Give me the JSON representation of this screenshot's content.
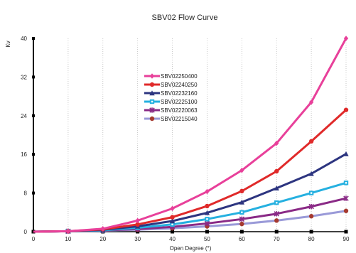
{
  "chart_data": {
    "type": "line",
    "title": "SBV02 Flow Curve",
    "xlabel": "Open Degree (°)",
    "ylabel": "Kv",
    "xlim": [
      0,
      90
    ],
    "ylim": [
      0,
      40
    ],
    "x_ticks": [
      0,
      10,
      20,
      30,
      40,
      50,
      60,
      70,
      80,
      90
    ],
    "y_ticks": [
      0,
      8,
      16,
      24,
      32,
      40
    ],
    "grid": "dotted-vertical",
    "legend_position": "center-left",
    "x": [
      0,
      10,
      20,
      30,
      40,
      50,
      60,
      70,
      80,
      90
    ],
    "series": [
      {
        "name": "SBV02250400",
        "color": "#e8409a",
        "marker": "diamond",
        "values": [
          0,
          0.1,
          0.6,
          2.3,
          4.8,
          8.3,
          12.7,
          18.3,
          26.8,
          40
        ]
      },
      {
        "name": "SBV02240250",
        "color": "#e02a2a",
        "marker": "circle",
        "values": [
          0,
          0.1,
          0.5,
          1.5,
          3.0,
          5.3,
          8.4,
          12.5,
          18.7,
          25.2
        ]
      },
      {
        "name": "SBV02232160",
        "color": "#2d3580",
        "marker": "triangle",
        "values": [
          0,
          0.1,
          0.4,
          1.1,
          2.2,
          3.9,
          6.1,
          9.0,
          12.0,
          16.1
        ]
      },
      {
        "name": "SBV02225100",
        "color": "#25b0e0",
        "marker": "square",
        "values": [
          0,
          0.1,
          0.3,
          0.8,
          1.5,
          2.6,
          4.0,
          6.0,
          8.0,
          10.1
        ]
      },
      {
        "name": "SBV02220063",
        "color": "#8a2a86",
        "marker": "star",
        "values": [
          0,
          0.1,
          0.25,
          0.55,
          1.0,
          1.7,
          2.6,
          3.7,
          5.2,
          6.9
        ]
      },
      {
        "name": "SBV02215040",
        "color": "#9a9ad8",
        "marker": "circle-dark",
        "values": [
          0,
          0.1,
          0.2,
          0.4,
          0.7,
          1.1,
          1.6,
          2.3,
          3.2,
          4.3
        ]
      }
    ],
    "extra_series": [
      {
        "color": "#000000",
        "marker": "square",
        "values": [
          0,
          0,
          0,
          0,
          0,
          0,
          0,
          0,
          0,
          0
        ]
      }
    ]
  }
}
